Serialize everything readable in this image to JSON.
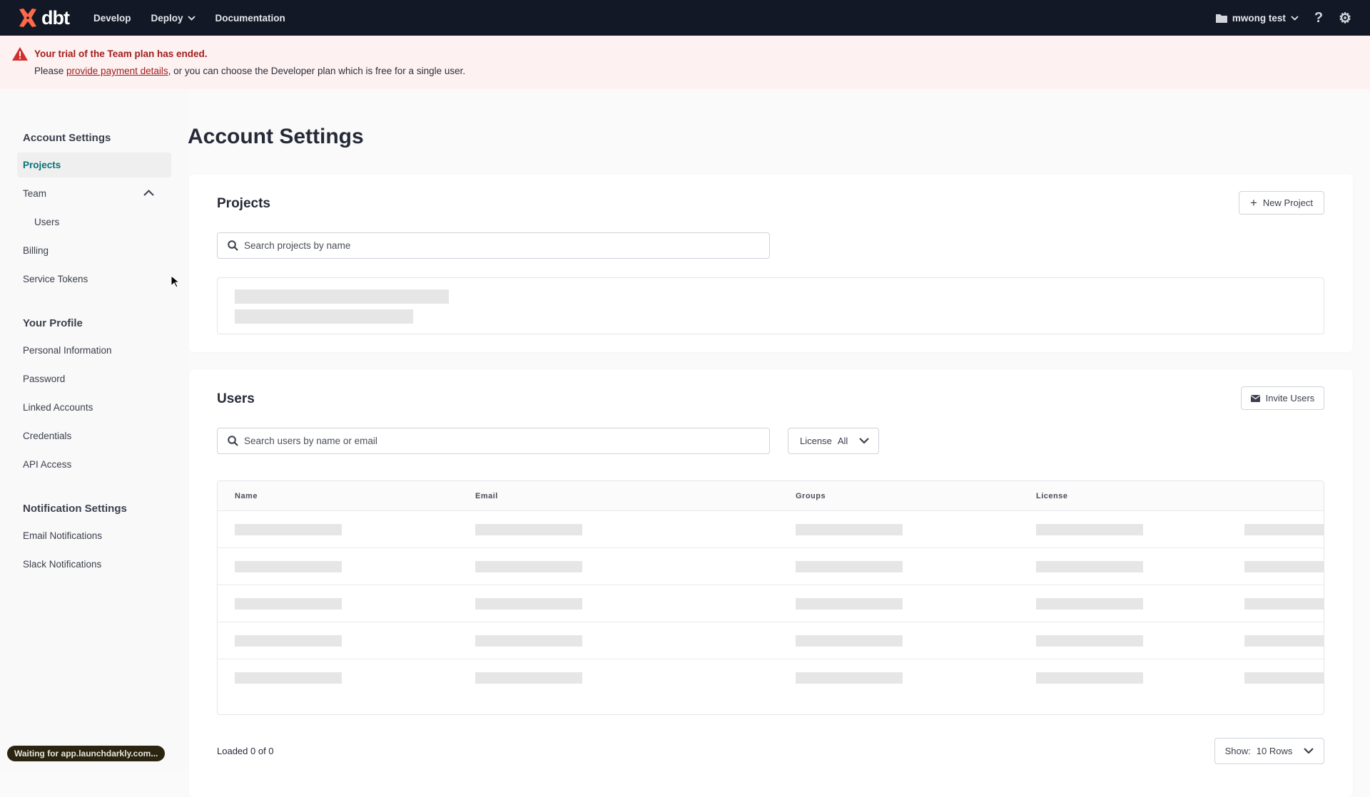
{
  "header": {
    "brand": "dbt",
    "nav": [
      "Develop",
      "Deploy",
      "Documentation"
    ],
    "project": "mwong test",
    "bg": "#121826",
    "brand_color": "#ff694a"
  },
  "banner": {
    "title": "Your trial of the Team plan has ended.",
    "prefix": "Please ",
    "link": "provide payment details",
    "suffix": ", or you can choose the Developer plan which is free for a single user."
  },
  "sidebar": {
    "sections": [
      {
        "heading": "Account Settings",
        "items": [
          "Projects",
          "Team",
          "Users",
          "Billing",
          "Service Tokens"
        ]
      },
      {
        "heading": "Your Profile",
        "items": [
          "Personal Information",
          "Password",
          "Linked Accounts",
          "Credentials",
          "API Access"
        ]
      },
      {
        "heading": "Notification Settings",
        "items": [
          "Email Notifications",
          "Slack Notifications"
        ]
      }
    ],
    "active": "Projects"
  },
  "page_title": "Account Settings",
  "projects": {
    "title": "Projects",
    "new_button": "New Project",
    "search_placeholder": "Search projects by name"
  },
  "users": {
    "title": "Users",
    "invite_button": "Invite Users",
    "search_placeholder": "Search users by name or email",
    "license_label": "License",
    "license_value": "All",
    "columns": [
      "Name",
      "Email",
      "Groups",
      "License"
    ],
    "loaded": "Loaded 0 of 0",
    "show_label": "Show:",
    "show_value": "10 Rows"
  },
  "status_toast": "Waiting for app.launchdarkly.com..."
}
